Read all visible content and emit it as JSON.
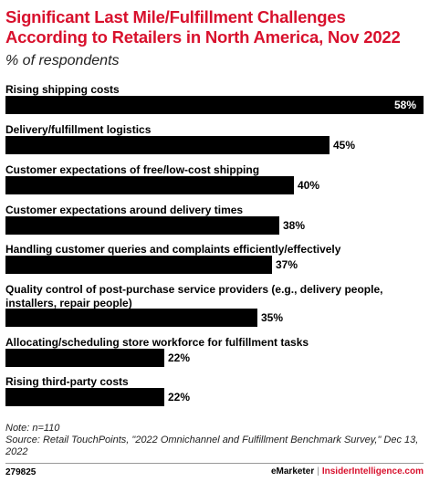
{
  "title": "Significant Last Mile/Fulfillment Challenges According to Retailers in North America, Nov 2022",
  "subtitle": "% of respondents",
  "chart_data": {
    "type": "bar",
    "orientation": "horizontal",
    "categories": [
      "Rising shipping costs",
      "Delivery/fulfillment logistics",
      "Customer expectations of free/low-cost shipping",
      "Customer expectations around delivery times",
      "Handling customer queries and complaints efficiently/effectively",
      "Quality control of post-purchase service providers (e.g., delivery people, installers, repair people)",
      "Allocating/scheduling store workforce for fulfillment tasks",
      "Rising third-party costs"
    ],
    "values": [
      58,
      45,
      40,
      38,
      37,
      35,
      22,
      22
    ],
    "value_labels": [
      "58%",
      "45%",
      "40%",
      "38%",
      "37%",
      "35%",
      "22%",
      "22%"
    ],
    "unit": "%",
    "xlim": [
      0,
      58
    ],
    "grid": false,
    "legend": "none",
    "bar_color": "#000000"
  },
  "notes": {
    "note": "Note: n=110",
    "source": "Source: Retail TouchPoints, \"2022 Omnichannel and Fulfillment Benchmark Survey,\" Dec 13, 2022"
  },
  "footer": {
    "chart_id": "279825",
    "brand1": "eMarketer",
    "separator": "|",
    "brand2": "InsiderIntelligence.com"
  },
  "colors": {
    "title": "#d8112d",
    "bars": "#000000"
  }
}
